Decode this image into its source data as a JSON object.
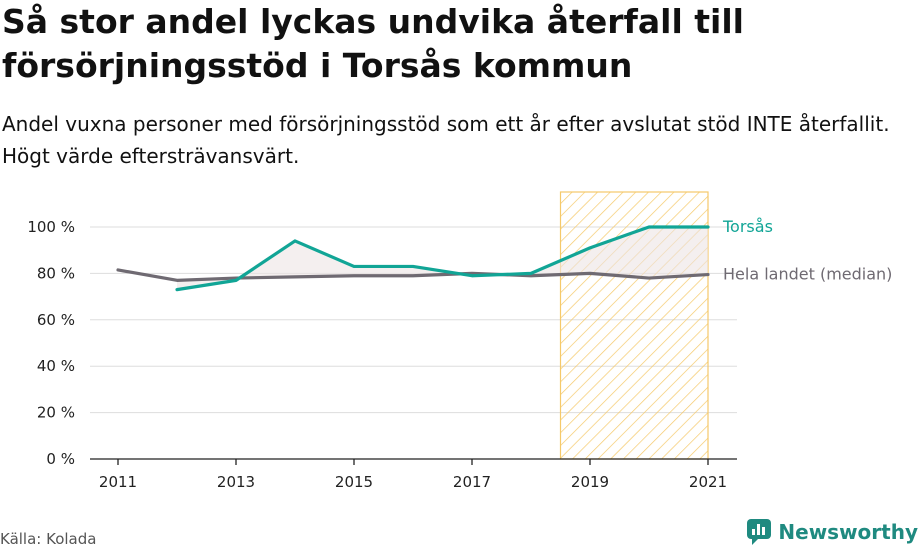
{
  "title": "Så stor andel lyckas undvika återfall till försörjningsstöd i Torsås kommun",
  "subtitle": "Andel vuxna personer med försörjningsstöd som ett år efter avslutat stöd INTE återfallit. Högt värde eftersträvansvärt.",
  "source": "Källa: Kolada",
  "brand": "Newsworthy",
  "colors": {
    "torsas": "#11a596",
    "national": "#6f6a72",
    "highlight_stroke": "#f5c96a",
    "fill_between": "#ece4e4",
    "grid": "#dddddd",
    "brand": "#1f8a80"
  },
  "chart_data": {
    "type": "line",
    "x": [
      2011,
      2012,
      2013,
      2014,
      2015,
      2016,
      2017,
      2018,
      2019,
      2020,
      2021
    ],
    "x_ticks": [
      "2011",
      "2013",
      "2015",
      "2017",
      "2019",
      "2021"
    ],
    "y_ticks": [
      "0 %",
      "20 %",
      "40 %",
      "60 %",
      "80 %",
      "100 %"
    ],
    "ylim": [
      0,
      100
    ],
    "highlight_range": [
      2018.5,
      2021
    ],
    "series": [
      {
        "name": "Torsås",
        "values": [
          null,
          73,
          77,
          94,
          83,
          83,
          79,
          80,
          91,
          100,
          100
        ]
      },
      {
        "name": "Hela landet (median)",
        "values": [
          81.5,
          77,
          78,
          78.5,
          79,
          79,
          80,
          79,
          80,
          78,
          79.5
        ]
      }
    ],
    "grid": true
  }
}
